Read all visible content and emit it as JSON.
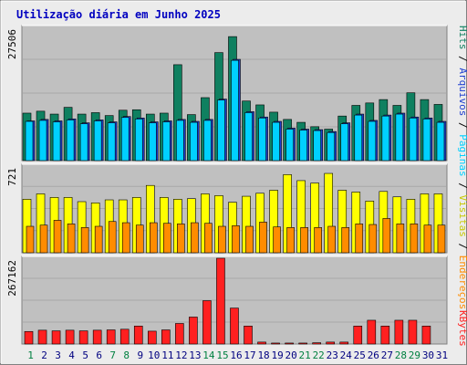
{
  "title": "Utilização diária em Junho 2025",
  "chart_data": [
    {
      "type": "bar",
      "panel": "hits-files-pages",
      "ymax_label": "27506",
      "ylim": [
        0,
        27506
      ],
      "categories": [
        "1",
        "2",
        "3",
        "4",
        "5",
        "6",
        "7",
        "8",
        "9",
        "10",
        "11",
        "12",
        "13",
        "14",
        "15",
        "16",
        "17",
        "18",
        "19",
        "20",
        "21",
        "22",
        "23",
        "24",
        "25",
        "26",
        "27",
        "28",
        "29",
        "30",
        "31"
      ],
      "series": [
        {
          "name": "Hits",
          "color": "#0f8060",
          "values": [
            9800,
            10200,
            9600,
            11000,
            9600,
            9900,
            9300,
            10400,
            10500,
            9600,
            9800,
            19800,
            9500,
            13000,
            22300,
            25600,
            12300,
            11500,
            10000,
            8500,
            7900,
            7000,
            6500,
            9200,
            11400,
            11900,
            12600,
            11400,
            14000,
            12600,
            11600
          ]
        },
        {
          "name": "Arquivos",
          "color": "#1f3fd0",
          "values": [
            8200,
            8500,
            8200,
            8600,
            7800,
            8400,
            8000,
            9100,
            8800,
            8000,
            8200,
            8500,
            8100,
            8500,
            12700,
            20900,
            10100,
            9000,
            8100,
            6700,
            6500,
            6400,
            6000,
            7800,
            9600,
            8300,
            9400,
            9800,
            9000,
            8800,
            8100
          ]
        },
        {
          "name": "Páginas",
          "color": "#00d0ff",
          "values": [
            8100,
            8300,
            8000,
            8400,
            7600,
            8200,
            7800,
            8900,
            8600,
            7800,
            8000,
            8300,
            7900,
            8300,
            12500,
            20700,
            9900,
            8800,
            7900,
            6500,
            6300,
            6200,
            5800,
            7600,
            9400,
            8100,
            9200,
            9600,
            8800,
            8600,
            7900
          ]
        }
      ]
    },
    {
      "type": "bar",
      "panel": "visits-addresses",
      "ymax_label": "721",
      "ylim": [
        0,
        721
      ],
      "categories": [
        "1",
        "2",
        "3",
        "4",
        "5",
        "6",
        "7",
        "8",
        "9",
        "10",
        "11",
        "12",
        "13",
        "14",
        "15",
        "16",
        "17",
        "18",
        "19",
        "20",
        "21",
        "22",
        "23",
        "24",
        "25",
        "26",
        "27",
        "28",
        "29",
        "30",
        "31"
      ],
      "series": [
        {
          "name": "Visitas",
          "color": "#ffff00",
          "values": [
            445,
            490,
            460,
            460,
            425,
            415,
            440,
            440,
            460,
            560,
            460,
            445,
            450,
            490,
            475,
            420,
            470,
            495,
            520,
            650,
            600,
            580,
            660,
            520,
            505,
            430,
            510,
            465,
            445,
            490,
            490
          ]
        },
        {
          "name": "Endereços",
          "color": "#ff8c00",
          "values": [
            220,
            230,
            270,
            240,
            210,
            220,
            260,
            250,
            230,
            250,
            245,
            240,
            250,
            245,
            220,
            225,
            220,
            255,
            215,
            210,
            210,
            210,
            220,
            210,
            240,
            235,
            285,
            240,
            240,
            230,
            230
          ]
        }
      ]
    },
    {
      "type": "bar",
      "panel": "kbytes",
      "ymax_label": "267162",
      "ylim": [
        0,
        267162
      ],
      "categories": [
        "1",
        "2",
        "3",
        "4",
        "5",
        "6",
        "7",
        "8",
        "9",
        "10",
        "11",
        "12",
        "13",
        "14",
        "15",
        "16",
        "17",
        "18",
        "19",
        "20",
        "21",
        "22",
        "23",
        "24",
        "25",
        "26",
        "27",
        "28",
        "29",
        "30",
        "31"
      ],
      "series": [
        {
          "name": "KBytes",
          "color": "#ff2020",
          "values": [
            39000,
            43000,
            41000,
            43000,
            41000,
            43000,
            44000,
            46000,
            56000,
            40000,
            44000,
            64000,
            84000,
            135000,
            267162,
            112000,
            56000,
            6000,
            3000,
            3000,
            3000,
            4000,
            6000,
            6000,
            56000,
            74000,
            56000,
            74000,
            74000,
            56000,
            0
          ]
        }
      ]
    }
  ],
  "legend_right": {
    "top": [
      {
        "label": "Hits",
        "color": "#0f8060"
      },
      {
        "label": "Arquivos",
        "color": "#1f3fd0"
      },
      {
        "label": "Páginas",
        "color": "#00d0ff"
      },
      {
        "label": "Visitas",
        "color": "#c8c800"
      },
      {
        "label": "Endereços",
        "color": "#ff8c00"
      }
    ],
    "bottom": [
      {
        "label": "KBytes",
        "color": "#ff2020"
      }
    ],
    "separator": " / "
  },
  "weekend_days": [
    "1",
    "7",
    "8",
    "14",
    "15",
    "21",
    "22",
    "28",
    "29"
  ],
  "colors": {
    "weekday": "#000080",
    "weekend": "#008040",
    "title": "#0000c0",
    "panel_bg": "#c0c0c0"
  }
}
